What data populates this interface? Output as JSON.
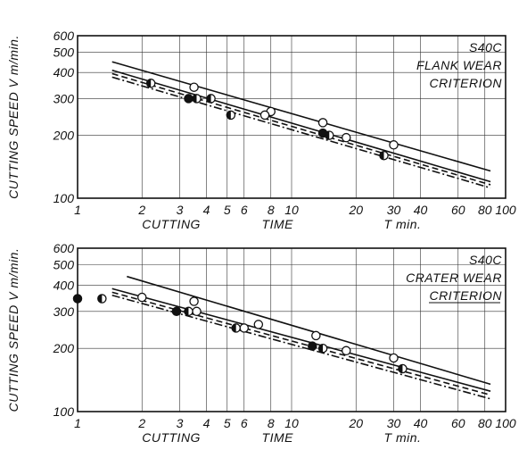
{
  "chart_data": [
    {
      "type": "scatter",
      "ylabel": "CUTTING SPEED V m/min.",
      "xlabel_parts": [
        "CUTTING",
        "TIME",
        "T min."
      ],
      "annotation": [
        "S40C",
        "FLANK WEAR",
        "CRITERION"
      ],
      "x_scale": "log",
      "y_scale": "log",
      "xlim": [
        1,
        100
      ],
      "ylim": [
        100,
        600
      ],
      "x_ticks": [
        "1",
        "2",
        "3",
        "4",
        "5",
        "6",
        "8",
        "10",
        "20",
        "30",
        "40",
        "60",
        "80",
        "100"
      ],
      "y_ticks": [
        "100",
        "200",
        "300",
        "400",
        "500",
        "600"
      ],
      "grid": true,
      "series": [
        {
          "marker": "open",
          "values": [
            [
              3.5,
              340
            ],
            [
              8,
              260
            ],
            [
              14,
              230
            ],
            [
              30,
              180
            ],
            [
              7.5,
              250
            ],
            [
              18,
              195
            ]
          ]
        },
        {
          "marker": "half-left",
          "values": [
            [
              2.2,
              355
            ],
            [
              3.6,
              300
            ],
            [
              4.2,
              300
            ],
            [
              5.2,
              250
            ],
            [
              15,
              200
            ],
            [
              27,
              160
            ]
          ]
        },
        {
          "marker": "filled",
          "values": [
            [
              3.3,
              300
            ],
            [
              14,
              205
            ]
          ]
        }
      ],
      "lines": [
        {
          "style": "solid",
          "x": [
            1.45,
            85
          ],
          "y": [
            450,
            135
          ]
        },
        {
          "style": "solid",
          "x": [
            1.45,
            85
          ],
          "y": [
            410,
            120
          ]
        },
        {
          "style": "dashed",
          "x": [
            1.45,
            85
          ],
          "y": [
            395,
            116
          ]
        },
        {
          "style": "dashdot",
          "x": [
            1.45,
            85
          ],
          "y": [
            380,
            112
          ]
        }
      ]
    },
    {
      "type": "scatter",
      "ylabel": "CUTTING SPEED V m/min.",
      "xlabel_parts": [
        "CUTTING",
        "TIME",
        "T min."
      ],
      "annotation": [
        "S40C",
        "CRATER WEAR",
        "CRITERION"
      ],
      "x_scale": "log",
      "y_scale": "log",
      "xlim": [
        1,
        100
      ],
      "ylim": [
        100,
        600
      ],
      "x_ticks": [
        "1",
        "2",
        "3",
        "4",
        "5",
        "6",
        "8",
        "10",
        "20",
        "30",
        "40",
        "60",
        "80",
        "100"
      ],
      "y_ticks": [
        "100",
        "200",
        "300",
        "400",
        "500",
        "600"
      ],
      "grid": true,
      "series": [
        {
          "marker": "open",
          "values": [
            [
              2,
              350
            ],
            [
              3.5,
              335
            ],
            [
              3.6,
              300
            ],
            [
              6,
              250
            ],
            [
              7,
              260
            ],
            [
              13,
              230
            ],
            [
              18,
              195
            ],
            [
              30,
              180
            ]
          ]
        },
        {
          "marker": "half-left",
          "values": [
            [
              1.3,
              345
            ],
            [
              3.3,
              300
            ],
            [
              5.5,
              250
            ],
            [
              14,
              200
            ],
            [
              33,
              160
            ]
          ]
        },
        {
          "marker": "filled",
          "values": [
            [
              1,
              345
            ],
            [
              2.9,
              300
            ],
            [
              12.5,
              205
            ]
          ]
        }
      ],
      "lines": [
        {
          "style": "solid",
          "x": [
            1.7,
            85
          ],
          "y": [
            440,
            135
          ]
        },
        {
          "style": "solid",
          "x": [
            1.45,
            85
          ],
          "y": [
            385,
            125
          ]
        },
        {
          "style": "dashed",
          "x": [
            1.45,
            85
          ],
          "y": [
            370,
            120
          ]
        },
        {
          "style": "dashdot",
          "x": [
            1.45,
            85
          ],
          "y": [
            358,
            115
          ]
        }
      ]
    }
  ]
}
